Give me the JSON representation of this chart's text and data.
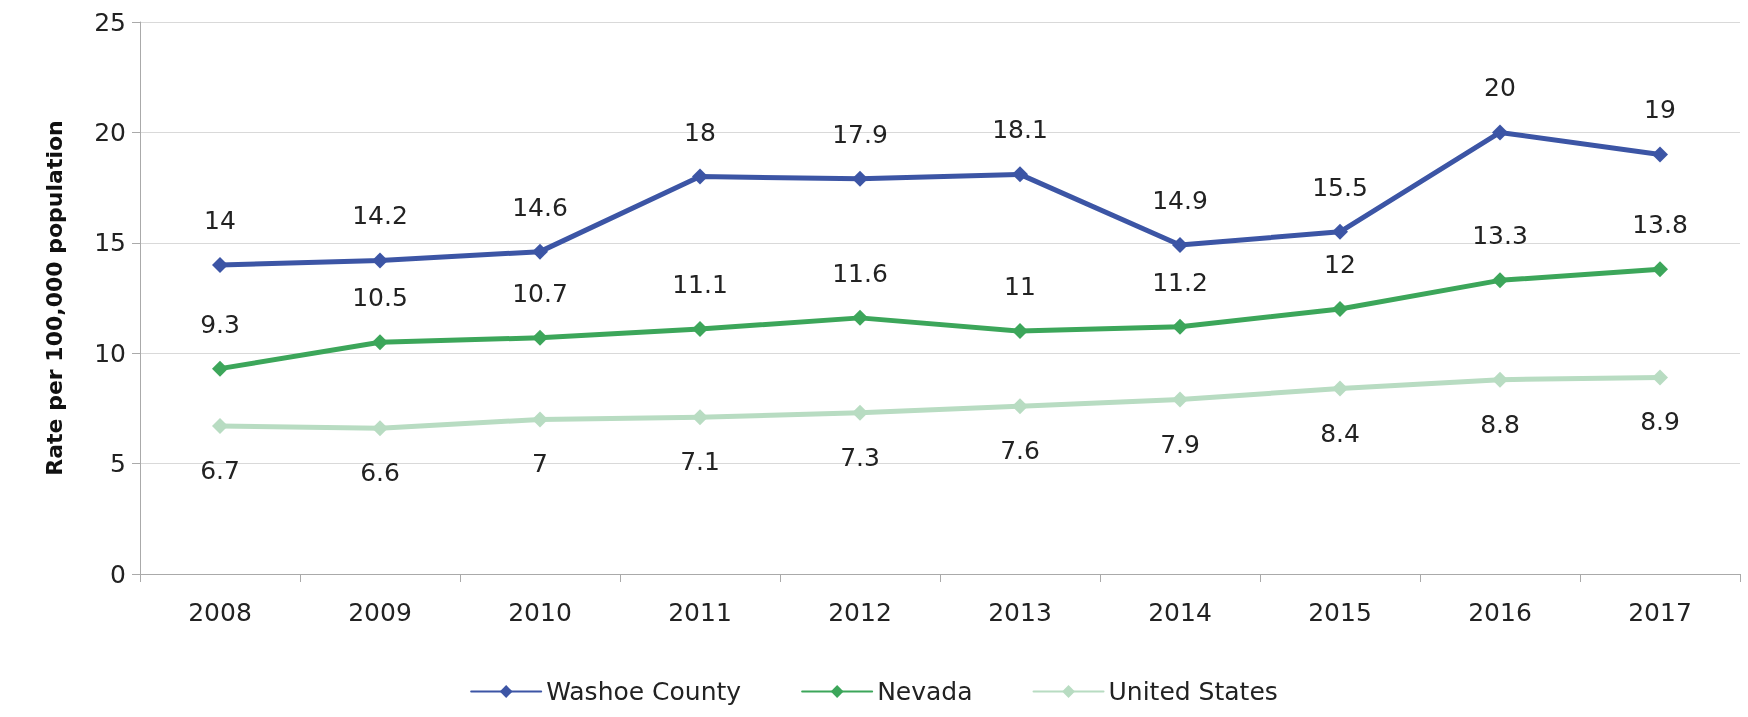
{
  "chart_data": {
    "type": "line",
    "ylabel": "Rate per 100,000 population",
    "categories": [
      "2008",
      "2009",
      "2010",
      "2011",
      "2012",
      "2013",
      "2014",
      "2015",
      "2016",
      "2017"
    ],
    "series": [
      {
        "name": "Washoe County",
        "color": "#3c55a5",
        "values": [
          14,
          14.2,
          14.6,
          18,
          17.9,
          18.1,
          14.9,
          15.5,
          20,
          19
        ]
      },
      {
        "name": "Nevada",
        "color": "#3ca65a",
        "values": [
          9.3,
          10.5,
          10.7,
          11.1,
          11.6,
          11,
          11.2,
          12,
          13.3,
          13.8
        ]
      },
      {
        "name": "United States",
        "color": "#b8dcc2",
        "values": [
          6.7,
          6.6,
          7,
          7.1,
          7.3,
          7.6,
          7.9,
          8.4,
          8.8,
          8.9
        ]
      }
    ],
    "ylim": [
      0,
      25
    ],
    "yticks": [
      0,
      5,
      10,
      15,
      20,
      25
    ],
    "grid": "y",
    "legend": "bottom",
    "marker": "diamond",
    "line_style": "solid",
    "data_labels": true
  }
}
